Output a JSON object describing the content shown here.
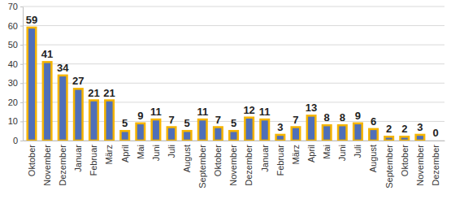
{
  "chart_data": {
    "type": "bar",
    "categories": [
      "Oktober",
      "November",
      "Dezember",
      "Januar",
      "Februar",
      "März",
      "April",
      "Mai",
      "Juni",
      "Juli",
      "August",
      "September",
      "Oktober",
      "November",
      "Dezember",
      "Januar",
      "Februar",
      "März",
      "April",
      "Mai",
      "Juni",
      "Juli",
      "August",
      "September",
      "Oktober",
      "November",
      "Dezember"
    ],
    "values": [
      59,
      41,
      34,
      27,
      21,
      21,
      5,
      9,
      11,
      7,
      5,
      11,
      7,
      5,
      12,
      11,
      3,
      7,
      13,
      8,
      8,
      9,
      6,
      2,
      2,
      3,
      0
    ],
    "color": "#4f6fb8",
    "ylim": [
      0,
      70
    ],
    "yticks": [
      0,
      10,
      20,
      30,
      40,
      50,
      60,
      70
    ],
    "grid": true,
    "data_labels": true
  }
}
